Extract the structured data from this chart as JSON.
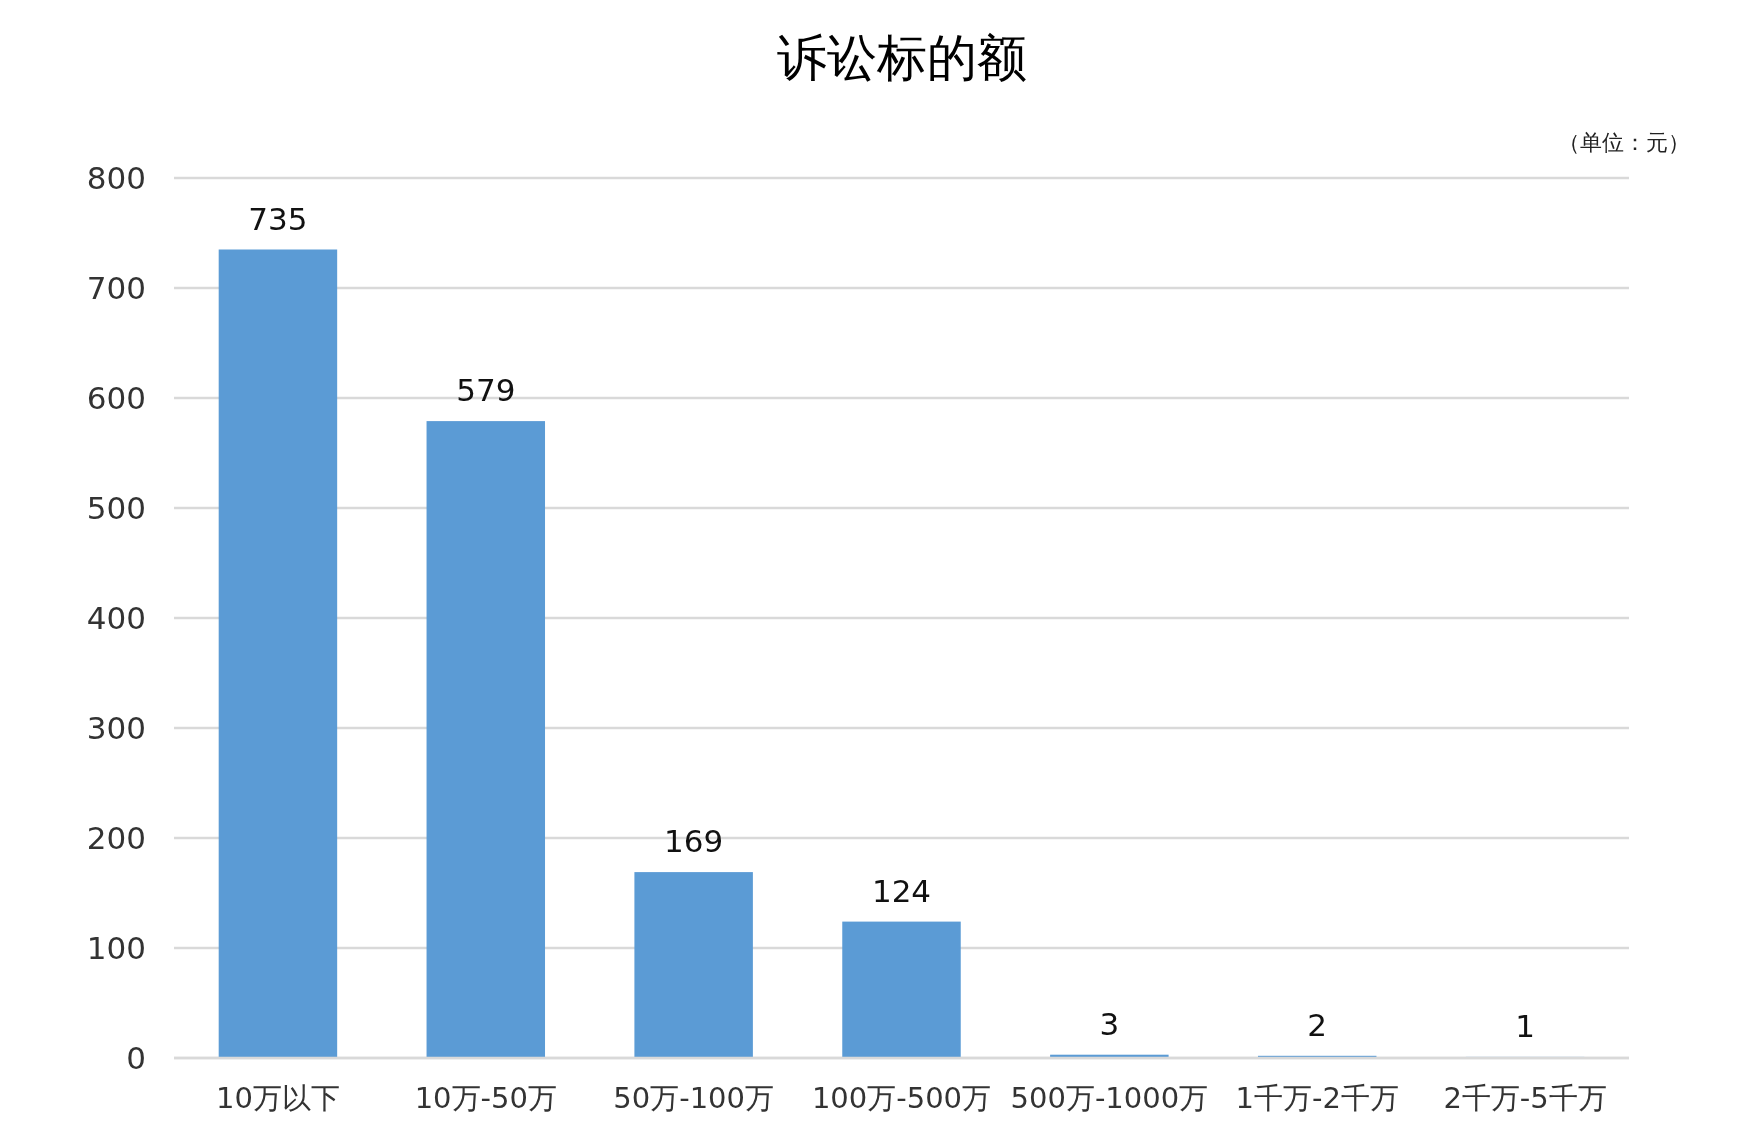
{
  "chart_data": {
    "type": "bar",
    "title": "诉讼标的额",
    "categories": [
      "10万以下",
      "10万-50万",
      "50万-100万",
      "100万-500万",
      "500万-1000万",
      "1千万-2千万",
      "2千万-5千万"
    ],
    "values": [
      735,
      579,
      169,
      124,
      3,
      2,
      1
    ],
    "color": "#5b9bd5",
    "ylim": [
      0,
      800
    ],
    "yticks": [
      0,
      100,
      200,
      300,
      400,
      500,
      600,
      700,
      800
    ],
    "grid": "y",
    "data_labels": true,
    "annotations": [
      "（单位：元）"
    ]
  }
}
